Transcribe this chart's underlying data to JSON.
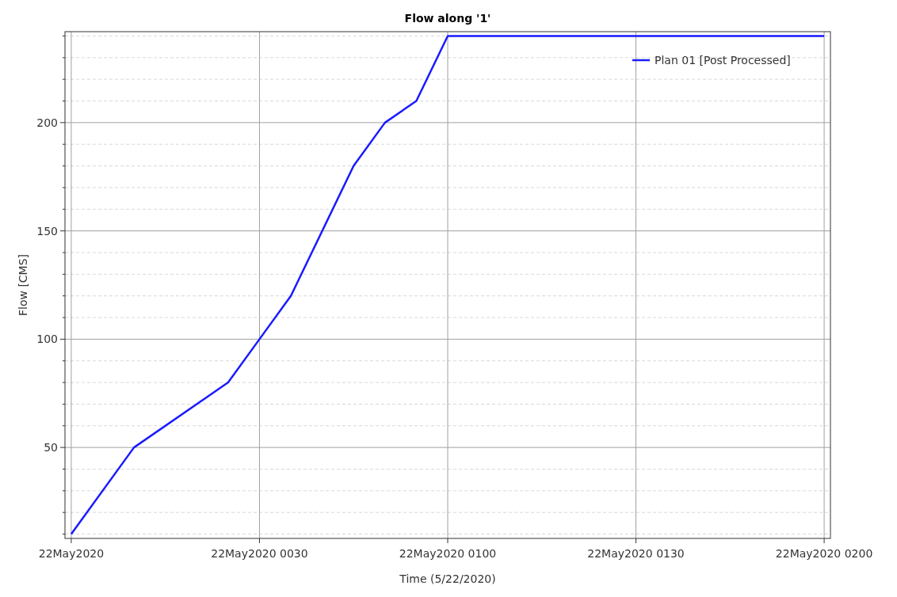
{
  "chart_data": {
    "type": "line",
    "title": "Flow along '1'",
    "xlabel": "Time (5/22/2020)",
    "ylabel": "Flow [CMS]",
    "x": [
      "2020-05-22T00:00",
      "2020-05-22T00:10",
      "2020-05-22T00:25",
      "2020-05-22T00:30",
      "2020-05-22T00:35",
      "2020-05-22T00:45",
      "2020-05-22T00:50",
      "2020-05-22T00:55",
      "2020-05-22T01:00",
      "2020-05-22T02:00"
    ],
    "series": [
      {
        "name": "Plan 01 [Post Processed]",
        "color": "#1a1aff",
        "values": [
          10,
          50,
          80,
          100,
          120,
          180,
          200,
          210,
          240,
          240
        ]
      }
    ],
    "xlim": [
      "2020-05-21T23:59",
      "2020-05-22T02:01"
    ],
    "ylim": [
      8,
      242
    ],
    "xticks": [
      {
        "value": "2020-05-22T00:00",
        "label": "22May2020"
      },
      {
        "value": "2020-05-22T00:30",
        "label": "22May2020 0030"
      },
      {
        "value": "2020-05-22T01:00",
        "label": "22May2020 0100"
      },
      {
        "value": "2020-05-22T01:30",
        "label": "22May2020 0130"
      },
      {
        "value": "2020-05-22T02:00",
        "label": "22May2020 0200"
      }
    ],
    "yticks": [
      {
        "value": 10,
        "label": null
      },
      {
        "value": 20,
        "label": null
      },
      {
        "value": 30,
        "label": null
      },
      {
        "value": 40,
        "label": null
      },
      50,
      {
        "value": 60,
        "label": null
      },
      {
        "value": 70,
        "label": null
      },
      {
        "value": 80,
        "label": null
      },
      {
        "value": 90,
        "label": null
      },
      100,
      {
        "value": 110,
        "label": null
      },
      {
        "value": 120,
        "label": null
      },
      {
        "value": 130,
        "label": null
      },
      {
        "value": 140,
        "label": null
      },
      150,
      {
        "value": 160,
        "label": null
      },
      {
        "value": 170,
        "label": null
      },
      {
        "value": 180,
        "label": null
      },
      {
        "value": 190,
        "label": null
      },
      200,
      {
        "value": 210,
        "label": null
      },
      {
        "value": 220,
        "label": null
      },
      {
        "value": 230,
        "label": null
      },
      {
        "value": 240,
        "label": null
      }
    ],
    "grid": true,
    "legend": "top right",
    "marker": "none",
    "line_style": "solid"
  }
}
